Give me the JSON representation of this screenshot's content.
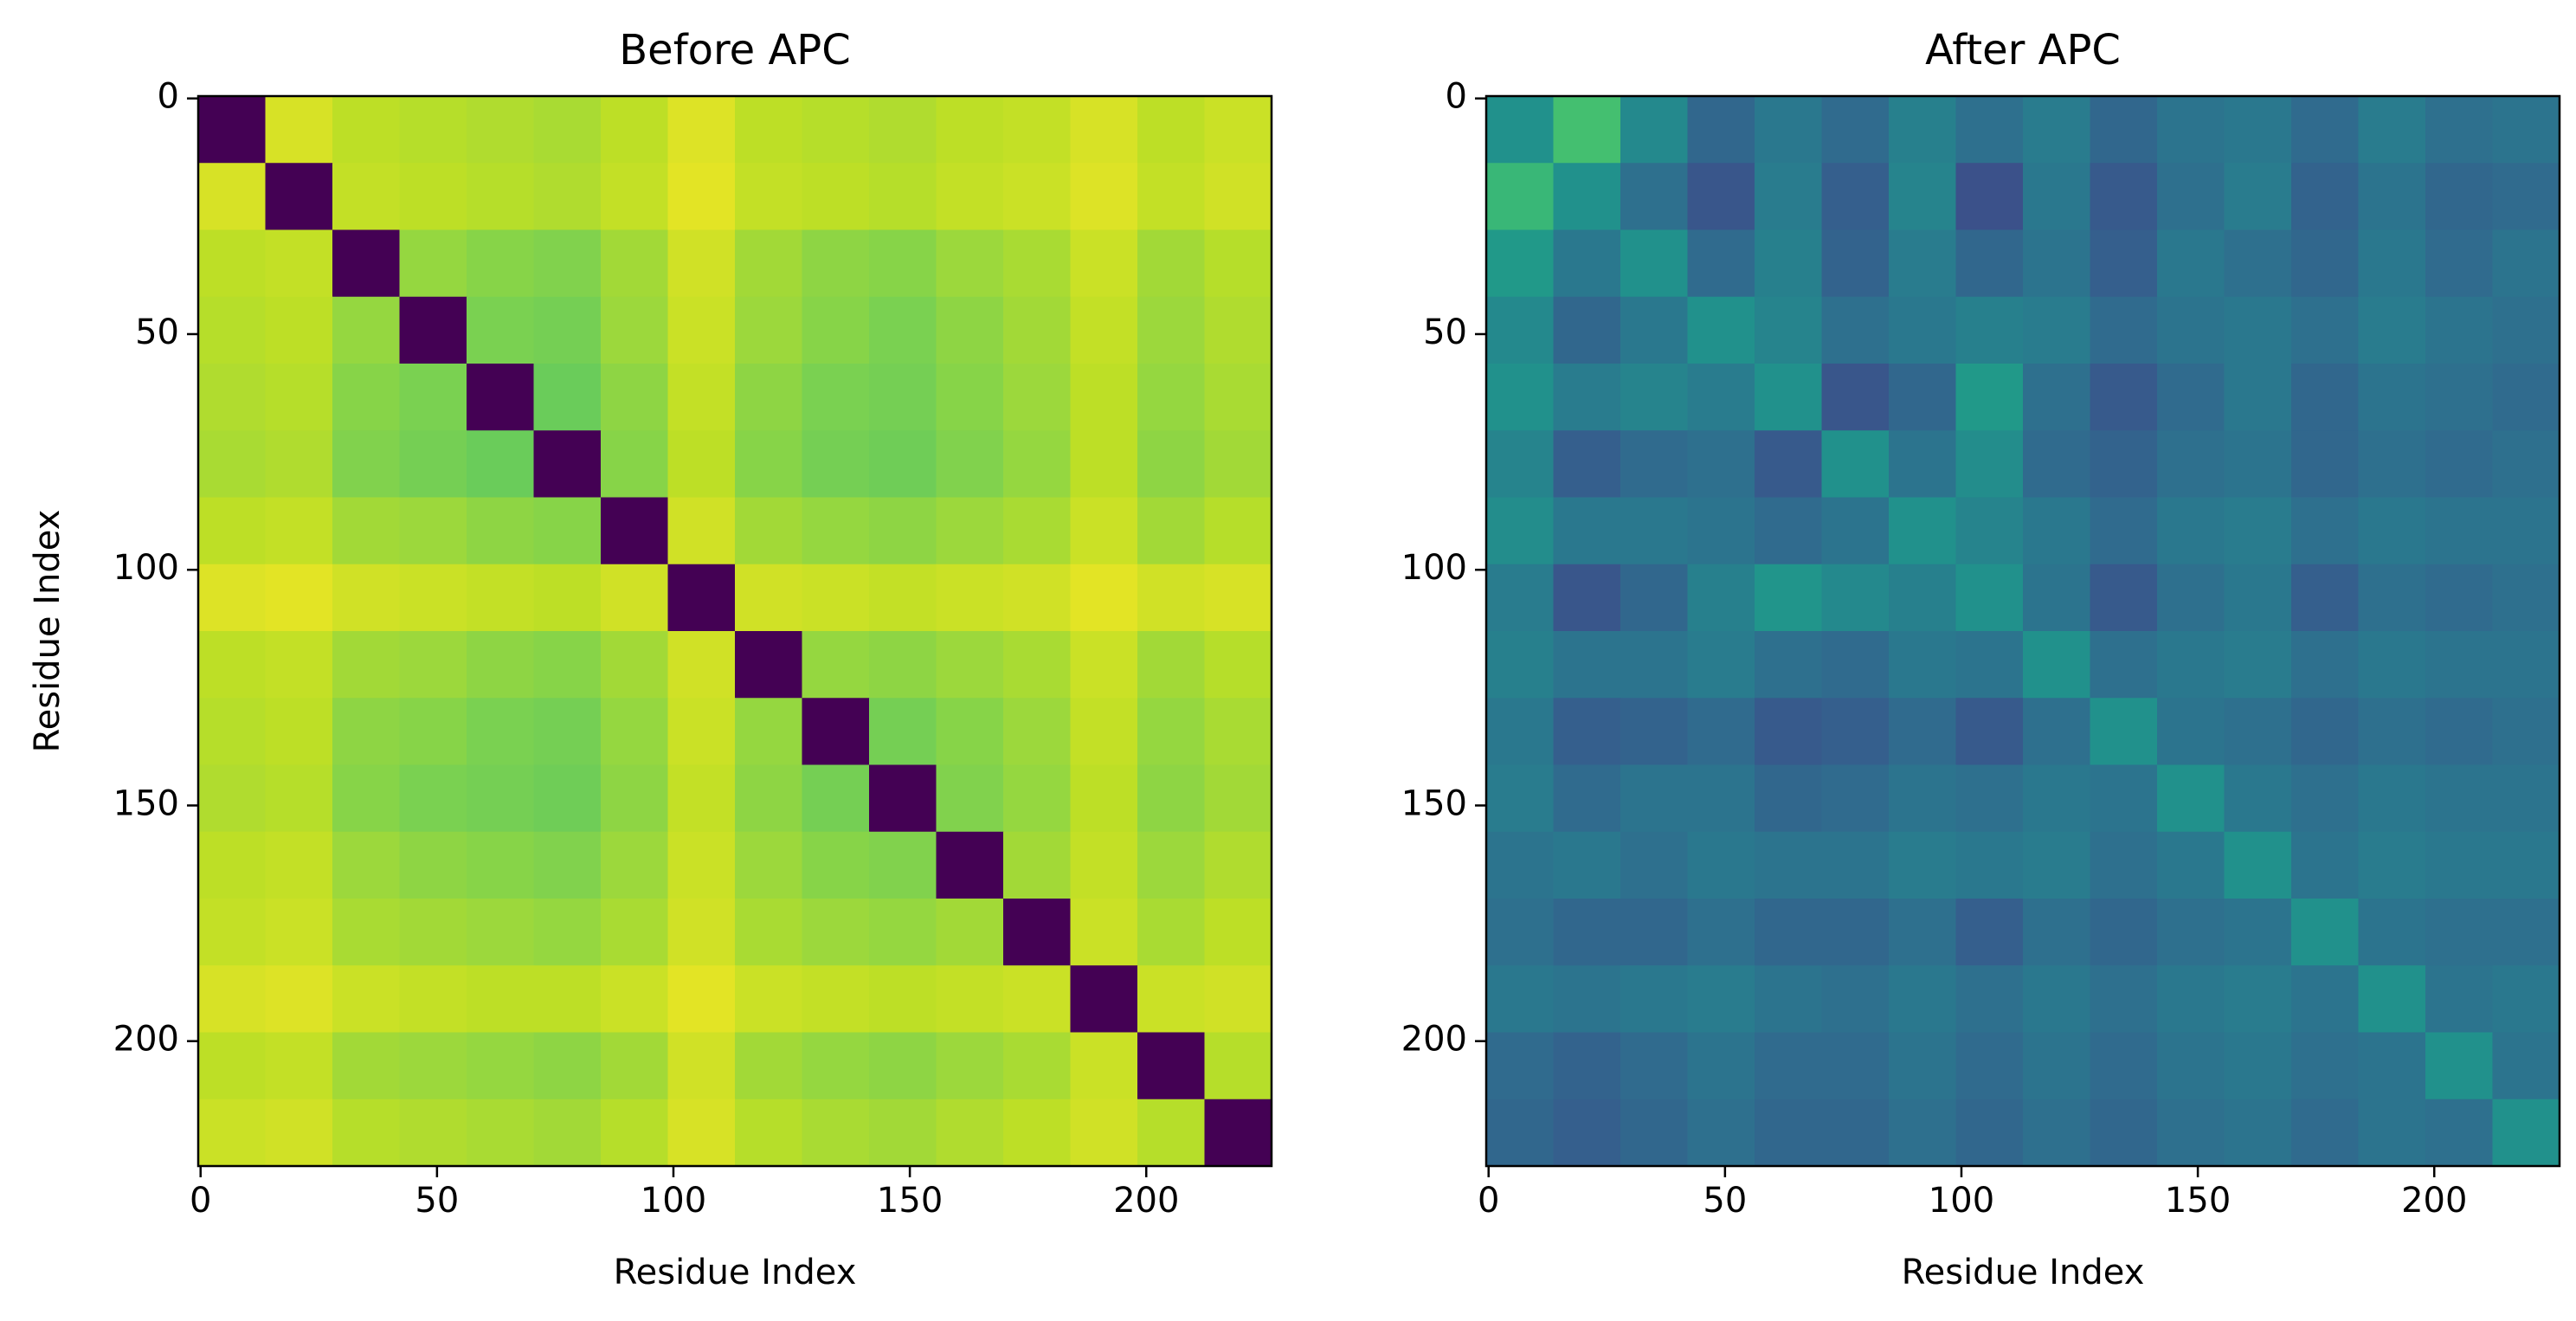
{
  "chart_data": [
    {
      "type": "heatmap",
      "title": "Before APC",
      "xlabel": "Residue Index",
      "ylabel": "Residue Index",
      "colormap": "viridis",
      "clim": [
        0,
        1
      ],
      "xlim": [
        -0.5,
        226.5
      ],
      "ylim": [
        226.5,
        -0.5
      ],
      "xticks": [
        0,
        50,
        100,
        150,
        200
      ],
      "yticks": [
        0,
        50,
        100,
        150,
        200
      ],
      "values": [
        [
          0,
          0.94,
          0.9,
          0.89,
          0.88,
          0.87,
          0.9,
          0.95,
          0.9,
          0.89,
          0.88,
          0.9,
          0.91,
          0.94,
          0.9,
          0.92
        ],
        [
          0.94,
          0,
          0.91,
          0.9,
          0.89,
          0.88,
          0.91,
          0.96,
          0.91,
          0.9,
          0.89,
          0.91,
          0.92,
          0.95,
          0.91,
          0.93
        ],
        [
          0.9,
          0.91,
          0,
          0.84,
          0.82,
          0.81,
          0.86,
          0.93,
          0.86,
          0.83,
          0.82,
          0.85,
          0.87,
          0.92,
          0.86,
          0.89
        ],
        [
          0.89,
          0.9,
          0.84,
          0,
          0.8,
          0.79,
          0.85,
          0.92,
          0.85,
          0.82,
          0.8,
          0.83,
          0.86,
          0.91,
          0.85,
          0.88
        ],
        [
          0.88,
          0.89,
          0.82,
          0.8,
          0,
          0.77,
          0.83,
          0.91,
          0.83,
          0.8,
          0.79,
          0.82,
          0.85,
          0.9,
          0.84,
          0.87
        ],
        [
          0.87,
          0.88,
          0.81,
          0.79,
          0.77,
          0,
          0.82,
          0.9,
          0.82,
          0.79,
          0.78,
          0.81,
          0.84,
          0.9,
          0.83,
          0.86
        ],
        [
          0.9,
          0.91,
          0.86,
          0.85,
          0.83,
          0.82,
          0,
          0.93,
          0.86,
          0.84,
          0.83,
          0.85,
          0.87,
          0.92,
          0.86,
          0.89
        ],
        [
          0.95,
          0.96,
          0.93,
          0.92,
          0.91,
          0.9,
          0.93,
          0,
          0.93,
          0.92,
          0.91,
          0.92,
          0.93,
          0.96,
          0.93,
          0.94
        ],
        [
          0.9,
          0.91,
          0.86,
          0.85,
          0.83,
          0.82,
          0.86,
          0.93,
          0,
          0.84,
          0.83,
          0.85,
          0.87,
          0.92,
          0.86,
          0.89
        ],
        [
          0.89,
          0.9,
          0.83,
          0.82,
          0.8,
          0.79,
          0.84,
          0.92,
          0.84,
          0,
          0.79,
          0.82,
          0.85,
          0.91,
          0.84,
          0.87
        ],
        [
          0.88,
          0.89,
          0.82,
          0.8,
          0.79,
          0.78,
          0.83,
          0.91,
          0.83,
          0.79,
          0,
          0.81,
          0.84,
          0.9,
          0.83,
          0.86
        ],
        [
          0.9,
          0.91,
          0.85,
          0.83,
          0.82,
          0.81,
          0.85,
          0.92,
          0.85,
          0.82,
          0.81,
          0,
          0.86,
          0.91,
          0.85,
          0.88
        ],
        [
          0.91,
          0.92,
          0.87,
          0.86,
          0.85,
          0.84,
          0.87,
          0.93,
          0.87,
          0.85,
          0.84,
          0.86,
          0,
          0.92,
          0.87,
          0.9
        ],
        [
          0.94,
          0.95,
          0.92,
          0.91,
          0.9,
          0.9,
          0.92,
          0.96,
          0.92,
          0.91,
          0.9,
          0.91,
          0.92,
          0,
          0.92,
          0.93
        ],
        [
          0.9,
          0.91,
          0.86,
          0.85,
          0.84,
          0.83,
          0.86,
          0.93,
          0.86,
          0.84,
          0.83,
          0.85,
          0.87,
          0.92,
          0,
          0.89
        ],
        [
          0.92,
          0.93,
          0.89,
          0.88,
          0.87,
          0.86,
          0.89,
          0.94,
          0.89,
          0.87,
          0.86,
          0.88,
          0.9,
          0.93,
          0.89,
          0
        ]
      ]
    },
    {
      "type": "heatmap",
      "title": "After APC",
      "xlabel": "Residue Index",
      "colormap": "viridis",
      "clim": [
        0.2,
        0.8
      ],
      "xlim": [
        -0.5,
        226.5
      ],
      "ylim": [
        226.5,
        -0.5
      ],
      "xticks": [
        0,
        50,
        100,
        150,
        200
      ],
      "yticks": [
        0,
        50,
        100,
        150,
        200
      ],
      "values": [
        [
          0.5,
          0.62,
          0.48,
          0.4,
          0.44,
          0.41,
          0.46,
          0.42,
          0.45,
          0.4,
          0.43,
          0.44,
          0.41,
          0.45,
          0.42,
          0.43
        ],
        [
          0.6,
          0.5,
          0.42,
          0.36,
          0.45,
          0.38,
          0.47,
          0.35,
          0.44,
          0.37,
          0.42,
          0.45,
          0.39,
          0.43,
          0.4,
          0.41
        ],
        [
          0.52,
          0.44,
          0.5,
          0.41,
          0.46,
          0.39,
          0.45,
          0.4,
          0.43,
          0.38,
          0.44,
          0.42,
          0.4,
          0.44,
          0.41,
          0.43
        ],
        [
          0.48,
          0.4,
          0.44,
          0.5,
          0.47,
          0.42,
          0.44,
          0.46,
          0.45,
          0.41,
          0.43,
          0.44,
          0.42,
          0.45,
          0.43,
          0.42
        ],
        [
          0.5,
          0.45,
          0.47,
          0.45,
          0.5,
          0.36,
          0.4,
          0.52,
          0.42,
          0.37,
          0.41,
          0.44,
          0.4,
          0.43,
          0.42,
          0.41
        ],
        [
          0.47,
          0.38,
          0.41,
          0.42,
          0.37,
          0.5,
          0.43,
          0.49,
          0.41,
          0.39,
          0.42,
          0.43,
          0.4,
          0.42,
          0.41,
          0.42
        ],
        [
          0.49,
          0.44,
          0.44,
          0.43,
          0.41,
          0.43,
          0.5,
          0.47,
          0.44,
          0.41,
          0.44,
          0.45,
          0.42,
          0.44,
          0.43,
          0.43
        ],
        [
          0.45,
          0.36,
          0.4,
          0.46,
          0.51,
          0.48,
          0.46,
          0.5,
          0.43,
          0.37,
          0.42,
          0.44,
          0.38,
          0.42,
          0.41,
          0.42
        ],
        [
          0.46,
          0.43,
          0.43,
          0.45,
          0.42,
          0.41,
          0.44,
          0.43,
          0.5,
          0.42,
          0.44,
          0.45,
          0.42,
          0.44,
          0.43,
          0.43
        ],
        [
          0.44,
          0.38,
          0.39,
          0.41,
          0.37,
          0.38,
          0.41,
          0.37,
          0.42,
          0.5,
          0.43,
          0.42,
          0.4,
          0.42,
          0.41,
          0.42
        ],
        [
          0.45,
          0.41,
          0.43,
          0.43,
          0.4,
          0.41,
          0.43,
          0.42,
          0.44,
          0.43,
          0.5,
          0.44,
          0.42,
          0.44,
          0.43,
          0.43
        ],
        [
          0.43,
          0.44,
          0.42,
          0.44,
          0.43,
          0.43,
          0.45,
          0.44,
          0.45,
          0.42,
          0.44,
          0.5,
          0.43,
          0.45,
          0.44,
          0.44
        ],
        [
          0.42,
          0.4,
          0.4,
          0.42,
          0.4,
          0.4,
          0.42,
          0.38,
          0.42,
          0.4,
          0.42,
          0.43,
          0.5,
          0.43,
          0.42,
          0.42
        ],
        [
          0.44,
          0.43,
          0.44,
          0.45,
          0.43,
          0.42,
          0.44,
          0.42,
          0.44,
          0.42,
          0.44,
          0.45,
          0.43,
          0.5,
          0.43,
          0.44
        ],
        [
          0.41,
          0.39,
          0.41,
          0.43,
          0.41,
          0.41,
          0.43,
          0.41,
          0.43,
          0.41,
          0.43,
          0.44,
          0.42,
          0.43,
          0.5,
          0.43
        ],
        [
          0.4,
          0.38,
          0.4,
          0.42,
          0.4,
          0.4,
          0.42,
          0.4,
          0.42,
          0.4,
          0.42,
          0.43,
          0.41,
          0.43,
          0.42,
          0.5
        ]
      ]
    }
  ]
}
